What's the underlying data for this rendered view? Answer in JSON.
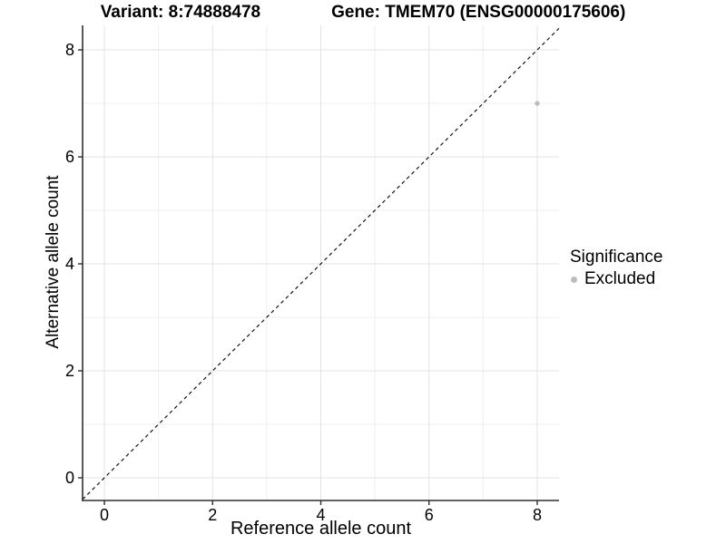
{
  "header": {
    "variant_title": "Variant: 8:74888478",
    "gene_title": "Gene: TMEM70 (ENSG00000175606)"
  },
  "chart_data": {
    "type": "scatter",
    "title": "Variant: 8:74888478 Gene: TMEM70 (ENSG00000175606)",
    "xlabel": "Reference allele count",
    "ylabel": "Alternative allele count",
    "xlim": [
      -0.403,
      8.403
    ],
    "ylim": [
      -0.424,
      8.458
    ],
    "x_ticks": [
      0,
      2,
      4,
      6,
      8
    ],
    "y_ticks": [
      0,
      2,
      4,
      6,
      8
    ],
    "x_grid_minor": [
      1,
      3,
      5,
      7
    ],
    "y_grid_minor": [
      1,
      3,
      5,
      7
    ],
    "grid": true,
    "legend_position": "right",
    "series": [
      {
        "name": "Excluded",
        "color": "#bcbcbc",
        "points": [
          {
            "x": 8,
            "y": 7
          }
        ]
      }
    ],
    "reference_line": {
      "kind": "identity",
      "equation": "y = x",
      "style": "dashed",
      "color": "#141414"
    },
    "legend": {
      "title": "Significance",
      "entries": [
        {
          "label": "Excluded",
          "color": "#bcbcbc",
          "marker": "circle"
        }
      ]
    }
  },
  "colors": {
    "background": "#ffffff",
    "grid_major": "#e3e3e3",
    "grid_minor": "#efefef",
    "axis_line": "#2e2e2e",
    "tick_text": "#000000",
    "point": "#bcbcbc"
  }
}
